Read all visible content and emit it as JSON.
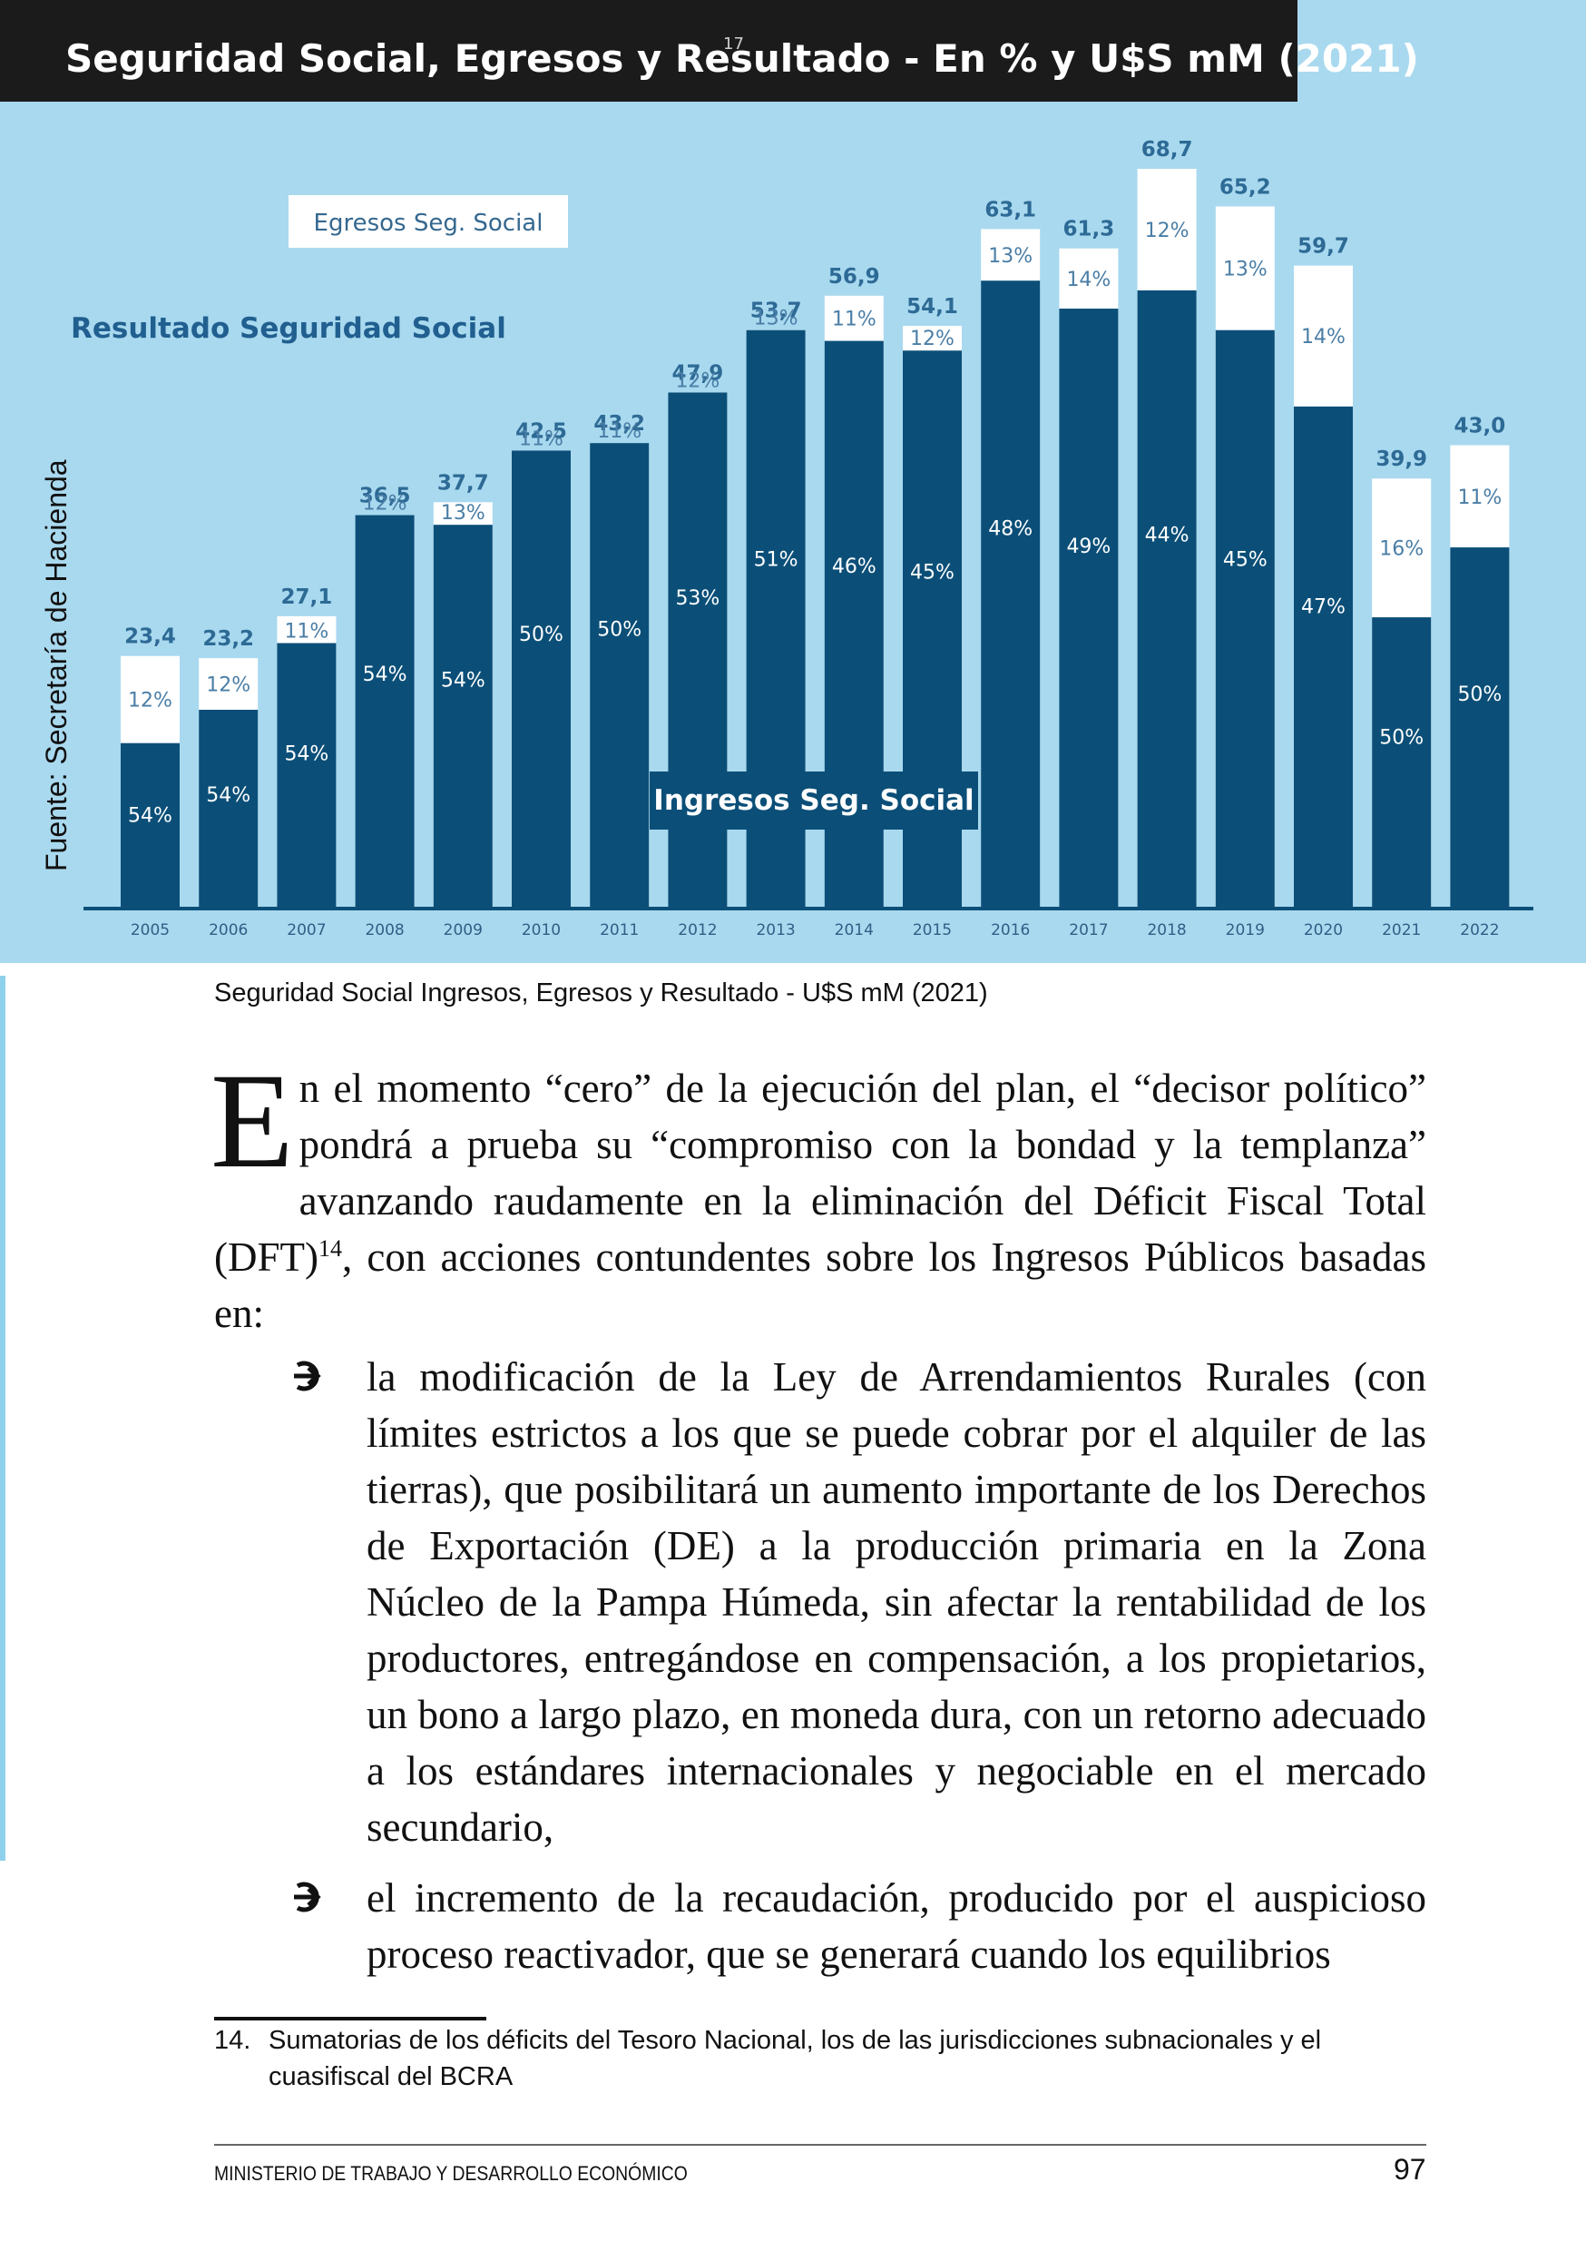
{
  "chart": {
    "title": "Seguridad Social, Egresos y Resultado - En % y U$S mM (2021)",
    "page_marker": "17",
    "source": "Fuente: Secretaría de Hacienda",
    "legend_egresos": "Egresos Seg. Social",
    "legend_resultado": "Resultado Seguridad Social",
    "legend_ingresos": "Ingresos Seg. Social",
    "colors": {
      "panel": "#a9d9ef",
      "ingresos": "#0b4f78",
      "egresos": "#ffffff",
      "total_label": "#2d6a95",
      "pct_white": "#ffffff",
      "pct_blue": "#4a7ea6"
    }
  },
  "chart_data": {
    "type": "bar",
    "title": "Seguridad Social, Egresos y Resultado - En % y U$S mM (2021)",
    "categories": [
      "2005",
      "2006",
      "2007",
      "2008",
      "2009",
      "2010",
      "2011",
      "2012",
      "2013",
      "2014",
      "2015",
      "2016",
      "2017",
      "2018",
      "2019",
      "2020",
      "2021",
      "2022"
    ],
    "series": [
      {
        "name": "Ingresos Seg. Social",
        "labels": [
          "54%",
          "54%",
          "54%",
          "54%",
          "54%",
          "50%",
          "50%",
          "53%",
          "51%",
          "46%",
          "45%",
          "48%",
          "49%",
          "44%",
          "45%",
          "47%",
          "50%",
          "50%"
        ]
      },
      {
        "name": "Egresos Seg. Social",
        "labels": [
          "12%",
          "12%",
          "11%",
          "12%",
          "13%",
          "11%",
          "11%",
          "12%",
          "13%",
          "11%",
          "12%",
          "13%",
          "14%",
          "12%",
          "13%",
          "14%",
          "16%",
          "11%"
        ]
      }
    ],
    "totals": [
      23.4,
      23.2,
      27.1,
      36.5,
      37.7,
      42.5,
      43.2,
      47.9,
      53.7,
      56.9,
      54.1,
      63.1,
      61.3,
      68.7,
      65.2,
      59.7,
      39.9,
      43.0
    ],
    "total_labels": [
      "23,4",
      "23,2",
      "27,1",
      "36,5",
      "37,7",
      "42,5",
      "43,2",
      "47,9",
      "53,7",
      "56,9",
      "54,1",
      "63,1",
      "61,3",
      "68,7",
      "65,2",
      "59,7",
      "39,9",
      "43,0"
    ],
    "ingresos_values": [
      15.3,
      18.4,
      24.6,
      36.5,
      35.6,
      42.5,
      43.2,
      47.9,
      53.7,
      52.7,
      51.8,
      58.3,
      55.7,
      57.4,
      53.7,
      46.6,
      27.0,
      33.5
    ],
    "ylim": [
      0,
      76
    ]
  },
  "caption": "Seguridad Social Ingresos, Egresos y Resultado - U$S mM (2021)",
  "body": {
    "dropcap": "E",
    "paragraph_rest": "n el momento “cero” de la ejecución del plan, el “decisor político” pondrá a prueba su “compromiso con la bondad y la templanza” avanzando raudamente en la eliminación del Déficit Fiscal Total (DFT)",
    "footnote_ref": "14",
    "paragraph_tail": ", con acciones contundentes sobre los Ingresos Públicos basadas en:",
    "bullets": [
      "la modificación de la Ley de Arrendamientos Rurales (con límites estrictos a los que se puede cobrar por el alquiler de las tierras), que posibilitará un aumento importante de los Derechos de Exportación (DE) a la producción primaria en la Zona Núcleo de la Pampa Húmeda, sin afectar la rentabilidad de los productores, entregándose en compensación, a los propietarios, un bono a largo plazo, en moneda dura, con un retorno adecuado a los estándares internacionales y negociable en el mercado secundario,",
      "el incremento de la recaudación, producido por el auspicioso proceso reactivador, que se generará cuando los equilibrios"
    ],
    "bullet_icon": "circled-arrow-icon"
  },
  "footnote": {
    "number": "14.",
    "text": "Sumatorias de los déficits del Tesoro Nacional, los de las jurisdicciones subnacionales y el cuasifiscal del BCRA"
  },
  "footer": {
    "left": "MINISTERIO DE TRABAJO Y DESARROLLO ECONÓMICO",
    "page_number": "97"
  }
}
